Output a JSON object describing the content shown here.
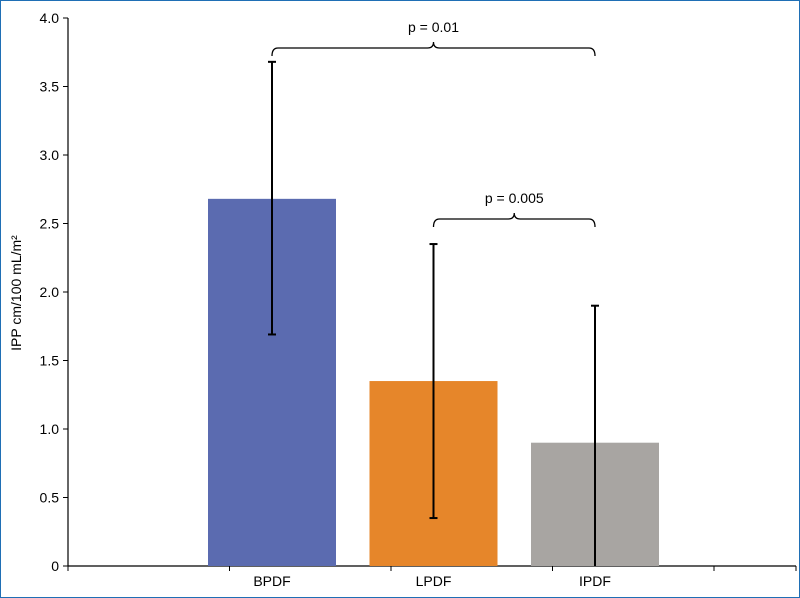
{
  "chart_data": {
    "type": "bar",
    "title": "",
    "xlabel": "",
    "ylabel": "IPP cm/100 mL/m²",
    "categories": [
      "BPDF",
      "LPDF",
      "IPDF"
    ],
    "values": [
      2.68,
      1.35,
      0.9
    ],
    "error_upper": [
      3.68,
      2.35,
      1.9
    ],
    "error_lower": [
      1.69,
      0.35,
      0.0
    ],
    "colors": [
      "#5b6bb0",
      "#e6862a",
      "#a8a5a2"
    ],
    "ylim": [
      0,
      4.0
    ],
    "yticks": [
      "0",
      "0.5",
      "1.0",
      "1.5",
      "2.0",
      "2.5",
      "3.0",
      "3.5",
      "4.0"
    ],
    "grid": false,
    "legend": "none",
    "annotations": [
      {
        "text": "p = 0.01",
        "from": "BPDF",
        "to": "IPDF"
      },
      {
        "text": "p = 0.005",
        "from": "LPDF",
        "to": "IPDF"
      }
    ]
  },
  "frame_color": "#1f6fb5"
}
